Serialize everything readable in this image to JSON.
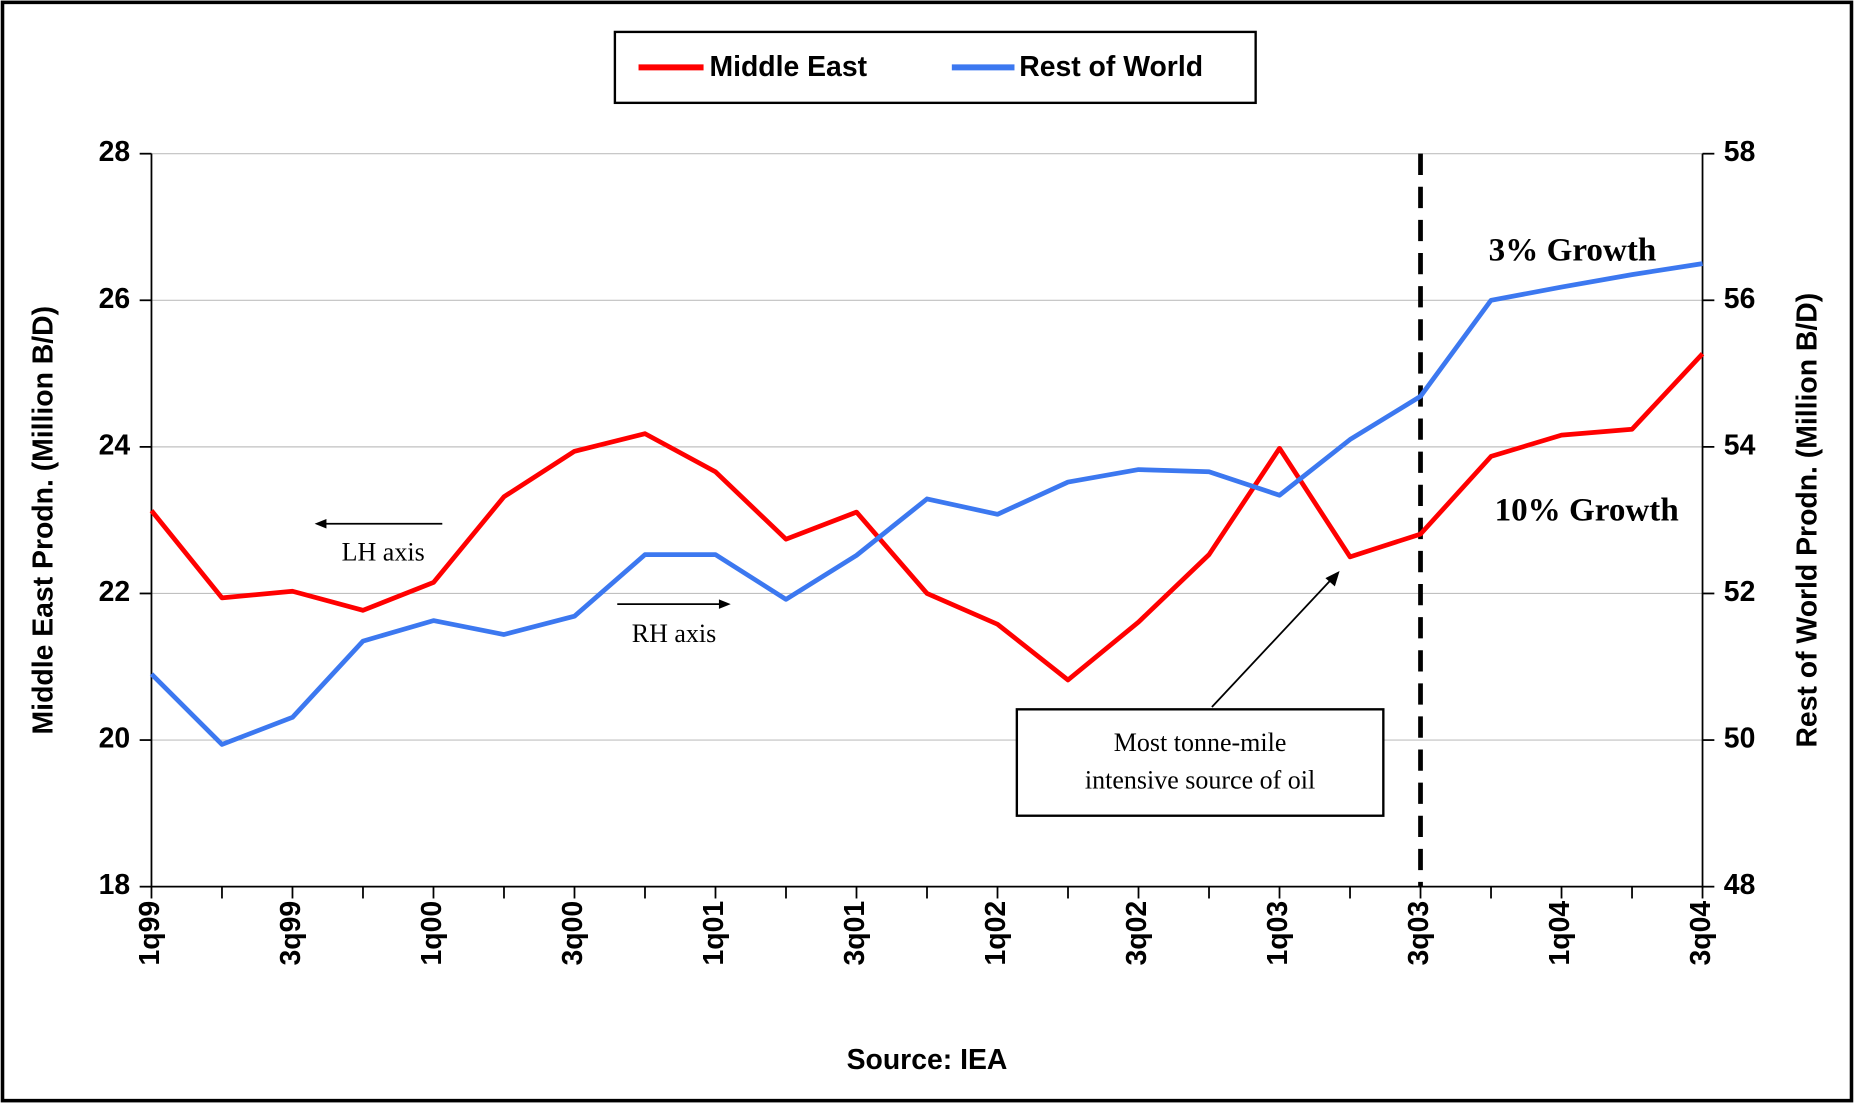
{
  "chart_data": {
    "type": "line",
    "categories": [
      "1q99",
      null,
      "3q99",
      null,
      "1q00",
      null,
      "3q00",
      null,
      "1q01",
      null,
      "3q01",
      null,
      "1q02",
      null,
      "3q02",
      null,
      "1q03",
      null,
      "3q03",
      null,
      "1q04",
      null,
      "3q04"
    ],
    "series": [
      {
        "name": "Middle East",
        "color": "#ff0000",
        "values": [
          23.13,
          21.94,
          22.03,
          21.77,
          22.15,
          23.32,
          23.94,
          24.18,
          23.66,
          22.74,
          23.11,
          22.0,
          21.58,
          20.82,
          21.61,
          22.53,
          23.98,
          22.5,
          22.81,
          23.87,
          24.16,
          24.24,
          25.27
        ]
      },
      {
        "name": "Rest of World",
        "color": "#3c78f0",
        "axis": "y2",
        "values": [
          50.9,
          49.94,
          50.31,
          51.35,
          51.63,
          51.44,
          51.69,
          52.53,
          52.53,
          51.92,
          52.52,
          53.29,
          53.08,
          53.52,
          53.69,
          53.66,
          53.34,
          54.1,
          54.69,
          56.0,
          56.18,
          56.35,
          56.5
        ]
      }
    ],
    "ylim": [
      18,
      28
    ],
    "yticks": [
      18,
      20,
      22,
      24,
      26,
      28
    ],
    "y2lim": [
      48,
      58
    ],
    "y2ticks": [
      48,
      50,
      52,
      54,
      56,
      58
    ],
    "ylabel": "Middle East Prodn. (Million B/D)",
    "y2label": "Rest of World Prodn. (Million B/D)",
    "xlabel": "Source: IEA",
    "grid": true,
    "annotations": {
      "lh": "LH axis",
      "rh": "RH axis",
      "row_growth": "3% Growth",
      "me_growth": "10% Growth",
      "box": [
        "Most tonne-mile",
        "intensive source of oil"
      ]
    }
  }
}
